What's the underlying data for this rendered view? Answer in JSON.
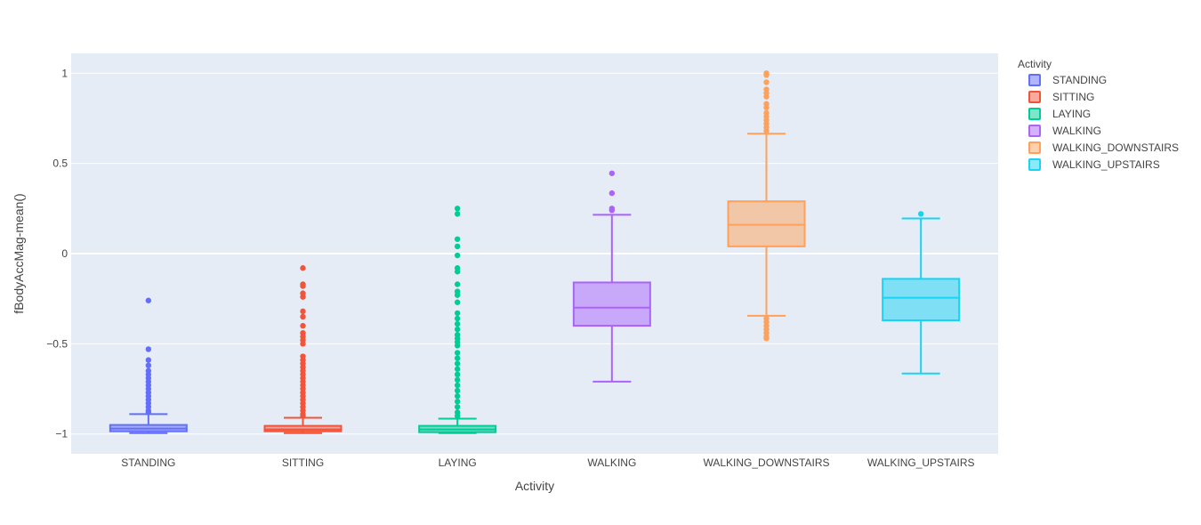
{
  "chart_data": {
    "type": "box",
    "xlabel": "Activity",
    "ylabel": "fBodyAccMag-mean()",
    "ylim": [
      -1.11,
      1.11
    ],
    "yticks": [
      {
        "value": 1,
        "label": "1"
      },
      {
        "value": 0.5,
        "label": "0.5"
      },
      {
        "value": 0,
        "label": "0"
      },
      {
        "value": -0.5,
        "label": "−0.5"
      },
      {
        "value": -1,
        "label": "−1"
      }
    ],
    "grid": true,
    "plot_background": "#e5ecf6",
    "legend": {
      "title": "Activity",
      "placement": "right"
    },
    "categories": [
      "STANDING",
      "SITTING",
      "LAYING",
      "WALKING",
      "WALKING_DOWNSTAIRS",
      "WALKING_UPSTAIRS"
    ],
    "series": [
      {
        "name": "STANDING",
        "color": "#636efa",
        "lower_fence": -0.995,
        "q1": -0.985,
        "median": -0.97,
        "q3": -0.95,
        "upper_fence": -0.89,
        "outliers": [
          -0.26,
          -0.53,
          -0.59,
          -0.62,
          -0.65,
          -0.67,
          -0.69,
          -0.71,
          -0.73,
          -0.75,
          -0.77,
          -0.79,
          -0.81,
          -0.83,
          -0.85,
          -0.87,
          -0.88
        ]
      },
      {
        "name": "SITTING",
        "color": "#ef553b",
        "lower_fence": -0.995,
        "q1": -0.985,
        "median": -0.975,
        "q3": -0.955,
        "upper_fence": -0.91,
        "outliers": [
          -0.08,
          -0.17,
          -0.18,
          -0.22,
          -0.24,
          -0.32,
          -0.35,
          -0.4,
          -0.44,
          -0.46,
          -0.48,
          -0.5,
          -0.57,
          -0.59,
          -0.61,
          -0.63,
          -0.65,
          -0.67,
          -0.69,
          -0.71,
          -0.73,
          -0.75,
          -0.77,
          -0.79,
          -0.81,
          -0.83,
          -0.85,
          -0.87,
          -0.89,
          -0.9
        ]
      },
      {
        "name": "LAYING",
        "color": "#00cc96",
        "lower_fence": -0.995,
        "q1": -0.99,
        "median": -0.975,
        "q3": -0.955,
        "upper_fence": -0.915,
        "outliers": [
          0.25,
          0.22,
          0.08,
          0.04,
          -0.01,
          -0.08,
          -0.1,
          -0.17,
          -0.21,
          -0.23,
          -0.27,
          -0.33,
          -0.36,
          -0.39,
          -0.42,
          -0.45,
          -0.47,
          -0.49,
          -0.51,
          -0.55,
          -0.58,
          -0.61,
          -0.64,
          -0.67,
          -0.7,
          -0.73,
          -0.76,
          -0.79,
          -0.82,
          -0.85,
          -0.88,
          -0.9
        ]
      },
      {
        "name": "WALKING",
        "color": "#ab63fa",
        "lower_fence": -0.71,
        "q1": -0.4,
        "median": -0.3,
        "q3": -0.16,
        "upper_fence": 0.215,
        "outliers": [
          0.445,
          0.335,
          0.25,
          0.24
        ]
      },
      {
        "name": "WALKING_DOWNSTAIRS",
        "color": "#ffa15a",
        "lower_fence": -0.345,
        "q1": 0.04,
        "median": 0.16,
        "q3": 0.29,
        "upper_fence": 0.665,
        "outliers": [
          1.0,
          0.99,
          0.95,
          0.91,
          0.89,
          0.87,
          0.83,
          0.81,
          0.78,
          0.76,
          0.74,
          0.72,
          0.7,
          0.68,
          -0.36,
          -0.38,
          -0.4,
          -0.42,
          -0.44,
          -0.46,
          -0.47
        ]
      },
      {
        "name": "WALKING_UPSTAIRS",
        "color": "#19d3f3",
        "lower_fence": -0.665,
        "q1": -0.37,
        "median": -0.245,
        "q3": -0.14,
        "upper_fence": 0.195,
        "outliers": [
          0.22
        ]
      }
    ]
  }
}
